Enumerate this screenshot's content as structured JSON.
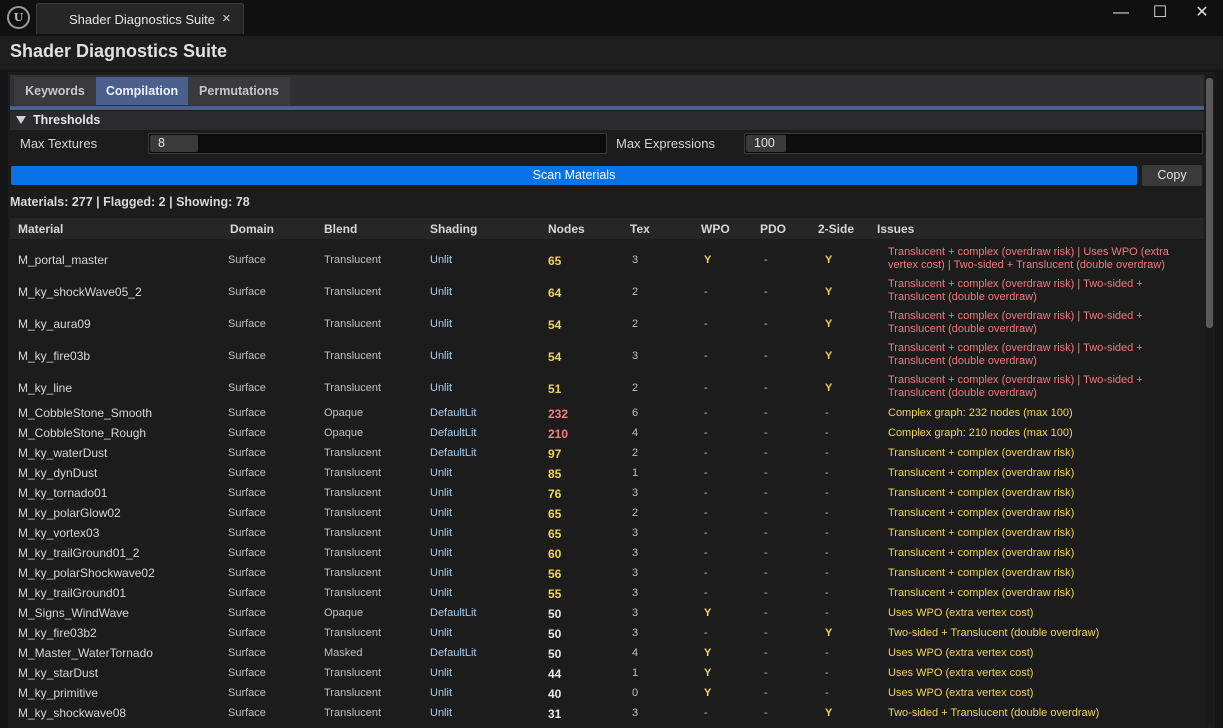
{
  "window": {
    "tab_title": "Shader Diagnostics Suite",
    "close_glyph": "×",
    "minimize_glyph": "—",
    "maximize_glyph": "☐",
    "closewin_glyph": "✕"
  },
  "app_title": "Shader Diagnostics Suite",
  "tabs": [
    {
      "label": "Keywords",
      "active": false
    },
    {
      "label": "Compilation",
      "active": true
    },
    {
      "label": "Permutations",
      "active": false
    }
  ],
  "thresholds": {
    "label": "Thresholds",
    "max_textures_label": "Max Textures",
    "max_textures_value": "8",
    "max_expressions_label": "Max Expressions",
    "max_expressions_value": "100"
  },
  "scan_button": "Scan Materials",
  "copy_button": "Copy",
  "summary": "Materials: 277  |  Flagged: 2  |  Showing: 78",
  "columns": [
    "Material",
    "Domain",
    "Blend",
    "Shading",
    "Nodes",
    "Tex",
    "WPO",
    "PDO",
    "2-Side",
    "Issues"
  ],
  "colors": {
    "accent_blue": "#0a72e8",
    "tab_active": "#4a5f8c",
    "nodes_high": "#f08080",
    "nodes_warn": "#f3d35a",
    "nodes_ok": "#e8e8e8",
    "issue_red": "#f07a7a",
    "issue_yellow": "#f3d35a",
    "shading_text": "#a6cdf0"
  },
  "rows": [
    {
      "material": "M_portal_master",
      "domain": "Surface",
      "blend": "Translucent",
      "shading": "Unlit",
      "nodes": "65",
      "nodes_level": "warn",
      "tex": "3",
      "wpo": "Y",
      "pdo": "-",
      "two_side": "Y",
      "issues": "Translucent + complex (overdraw risk) | Uses WPO (extra vertex cost) | Two-sided + Translucent (double overdraw)",
      "issue_level": "red"
    },
    {
      "material": "M_ky_shockWave05_2",
      "domain": "Surface",
      "blend": "Translucent",
      "shading": "Unlit",
      "nodes": "64",
      "nodes_level": "warn",
      "tex": "2",
      "wpo": "-",
      "pdo": "-",
      "two_side": "Y",
      "issues": "Translucent + complex (overdraw risk) | Two-sided + Translucent (double overdraw)",
      "issue_level": "red"
    },
    {
      "material": "M_ky_aura09",
      "domain": "Surface",
      "blend": "Translucent",
      "shading": "Unlit",
      "nodes": "54",
      "nodes_level": "warn",
      "tex": "2",
      "wpo": "-",
      "pdo": "-",
      "two_side": "Y",
      "issues": "Translucent + complex (overdraw risk) | Two-sided + Translucent (double overdraw)",
      "issue_level": "red"
    },
    {
      "material": "M_ky_fire03b",
      "domain": "Surface",
      "blend": "Translucent",
      "shading": "Unlit",
      "nodes": "54",
      "nodes_level": "warn",
      "tex": "3",
      "wpo": "-",
      "pdo": "-",
      "two_side": "Y",
      "issues": "Translucent + complex (overdraw risk) | Two-sided + Translucent (double overdraw)",
      "issue_level": "red"
    },
    {
      "material": "M_ky_line",
      "domain": "Surface",
      "blend": "Translucent",
      "shading": "Unlit",
      "nodes": "51",
      "nodes_level": "warn",
      "tex": "2",
      "wpo": "-",
      "pdo": "-",
      "two_side": "Y",
      "issues": "Translucent + complex (overdraw risk) | Two-sided + Translucent (double overdraw)",
      "issue_level": "red"
    },
    {
      "material": "M_CobbleStone_Smooth",
      "domain": "Surface",
      "blend": "Opaque",
      "shading": "DefaultLit",
      "nodes": "232",
      "nodes_level": "high",
      "tex": "6",
      "wpo": "-",
      "pdo": "-",
      "two_side": "-",
      "issues": "Complex graph: 232 nodes (max 100)",
      "issue_level": "yellow"
    },
    {
      "material": "M_CobbleStone_Rough",
      "domain": "Surface",
      "blend": "Opaque",
      "shading": "DefaultLit",
      "nodes": "210",
      "nodes_level": "high",
      "tex": "4",
      "wpo": "-",
      "pdo": "-",
      "two_side": "-",
      "issues": "Complex graph: 210 nodes (max 100)",
      "issue_level": "yellow"
    },
    {
      "material": "M_ky_waterDust",
      "domain": "Surface",
      "blend": "Translucent",
      "shading": "DefaultLit",
      "nodes": "97",
      "nodes_level": "warn",
      "tex": "2",
      "wpo": "-",
      "pdo": "-",
      "two_side": "-",
      "issues": "Translucent + complex (overdraw risk)",
      "issue_level": "yellow"
    },
    {
      "material": "M_ky_dynDust",
      "domain": "Surface",
      "blend": "Translucent",
      "shading": "Unlit",
      "nodes": "85",
      "nodes_level": "warn",
      "tex": "1",
      "wpo": "-",
      "pdo": "-",
      "two_side": "-",
      "issues": "Translucent + complex (overdraw risk)",
      "issue_level": "yellow"
    },
    {
      "material": "M_ky_tornado01",
      "domain": "Surface",
      "blend": "Translucent",
      "shading": "Unlit",
      "nodes": "76",
      "nodes_level": "warn",
      "tex": "3",
      "wpo": "-",
      "pdo": "-",
      "two_side": "-",
      "issues": "Translucent + complex (overdraw risk)",
      "issue_level": "yellow"
    },
    {
      "material": "M_ky_polarGlow02",
      "domain": "Surface",
      "blend": "Translucent",
      "shading": "Unlit",
      "nodes": "65",
      "nodes_level": "warn",
      "tex": "2",
      "wpo": "-",
      "pdo": "-",
      "two_side": "-",
      "issues": "Translucent + complex (overdraw risk)",
      "issue_level": "yellow"
    },
    {
      "material": "M_ky_vortex03",
      "domain": "Surface",
      "blend": "Translucent",
      "shading": "Unlit",
      "nodes": "65",
      "nodes_level": "warn",
      "tex": "3",
      "wpo": "-",
      "pdo": "-",
      "two_side": "-",
      "issues": "Translucent + complex (overdraw risk)",
      "issue_level": "yellow"
    },
    {
      "material": "M_ky_trailGround01_2",
      "domain": "Surface",
      "blend": "Translucent",
      "shading": "Unlit",
      "nodes": "60",
      "nodes_level": "warn",
      "tex": "3",
      "wpo": "-",
      "pdo": "-",
      "two_side": "-",
      "issues": "Translucent + complex (overdraw risk)",
      "issue_level": "yellow"
    },
    {
      "material": "M_ky_polarShockwave02",
      "domain": "Surface",
      "blend": "Translucent",
      "shading": "Unlit",
      "nodes": "56",
      "nodes_level": "warn",
      "tex": "3",
      "wpo": "-",
      "pdo": "-",
      "two_side": "-",
      "issues": "Translucent + complex (overdraw risk)",
      "issue_level": "yellow"
    },
    {
      "material": "M_ky_trailGround01",
      "domain": "Surface",
      "blend": "Translucent",
      "shading": "Unlit",
      "nodes": "55",
      "nodes_level": "warn",
      "tex": "3",
      "wpo": "-",
      "pdo": "-",
      "two_side": "-",
      "issues": "Translucent + complex (overdraw risk)",
      "issue_level": "yellow"
    },
    {
      "material": "M_Signs_WindWave",
      "domain": "Surface",
      "blend": "Opaque",
      "shading": "DefaultLit",
      "nodes": "50",
      "nodes_level": "ok",
      "tex": "3",
      "wpo": "Y",
      "pdo": "-",
      "two_side": "-",
      "issues": "Uses WPO (extra vertex cost)",
      "issue_level": "yellow"
    },
    {
      "material": "M_ky_fire03b2",
      "domain": "Surface",
      "blend": "Translucent",
      "shading": "Unlit",
      "nodes": "50",
      "nodes_level": "ok",
      "tex": "3",
      "wpo": "-",
      "pdo": "-",
      "two_side": "Y",
      "issues": "Two-sided + Translucent (double overdraw)",
      "issue_level": "yellow"
    },
    {
      "material": "M_Master_WaterTornado",
      "domain": "Surface",
      "blend": "Masked",
      "shading": "DefaultLit",
      "nodes": "50",
      "nodes_level": "ok",
      "tex": "4",
      "wpo": "Y",
      "pdo": "-",
      "two_side": "-",
      "issues": "Uses WPO (extra vertex cost)",
      "issue_level": "yellow"
    },
    {
      "material": "M_ky_starDust",
      "domain": "Surface",
      "blend": "Translucent",
      "shading": "Unlit",
      "nodes": "44",
      "nodes_level": "ok",
      "tex": "1",
      "wpo": "Y",
      "pdo": "-",
      "two_side": "-",
      "issues": "Uses WPO (extra vertex cost)",
      "issue_level": "yellow"
    },
    {
      "material": "M_ky_primitive",
      "domain": "Surface",
      "blend": "Translucent",
      "shading": "Unlit",
      "nodes": "40",
      "nodes_level": "ok",
      "tex": "0",
      "wpo": "Y",
      "pdo": "-",
      "two_side": "-",
      "issues": "Uses WPO (extra vertex cost)",
      "issue_level": "yellow"
    },
    {
      "material": "M_ky_shockwave08",
      "domain": "Surface",
      "blend": "Translucent",
      "shading": "Unlit",
      "nodes": "31",
      "nodes_level": "ok",
      "tex": "3",
      "wpo": "-",
      "pdo": "-",
      "two_side": "Y",
      "issues": "Two-sided + Translucent (double overdraw)",
      "issue_level": "yellow"
    }
  ]
}
